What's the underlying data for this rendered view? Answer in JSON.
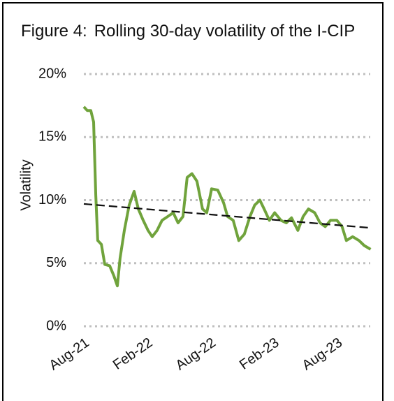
{
  "chart_data": {
    "type": "line",
    "figure_label": "Figure 4:",
    "title": "Rolling 30-day volatility of the I-CIP",
    "y_label": "Volatility",
    "xlim": [
      0,
      27.3
    ],
    "xticks": [
      {
        "value": 0,
        "label": "Aug-21"
      },
      {
        "value": 6,
        "label": "Feb-22"
      },
      {
        "value": 12,
        "label": "Aug-22"
      },
      {
        "value": 18,
        "label": "Feb-23"
      },
      {
        "value": 24,
        "label": "Aug-23"
      }
    ],
    "ylim": [
      0,
      20
    ],
    "yticks": [
      {
        "value": 0,
        "label": "0%"
      },
      {
        "value": 5,
        "label": "5%"
      },
      {
        "value": 10,
        "label": "10%"
      },
      {
        "value": 15,
        "label": "15%"
      },
      {
        "value": 20,
        "label": "20%"
      }
    ],
    "grid": true,
    "series": [
      {
        "color": "#70a33c",
        "style": "solid",
        "x": [
          0,
          0.33,
          0.66,
          0.93,
          1.13,
          1.32,
          1.66,
          1.99,
          2.45,
          2.85,
          3.18,
          3.44,
          3.84,
          4.3,
          4.77,
          5.17,
          5.63,
          6.09,
          6.49,
          6.95,
          7.42,
          7.95,
          8.48,
          8.94,
          9.4,
          9.8,
          10.26,
          10.73,
          11.26,
          11.66,
          12.12,
          12.7,
          13.25,
          13.64,
          14.17,
          14.7,
          15.23,
          15.76,
          16.2,
          16.7,
          17.1,
          17.6,
          18.1,
          18.7,
          19.2,
          19.7,
          20.3,
          20.8,
          21.3,
          21.9,
          22.4,
          22.9,
          23.4,
          24.0,
          24.5,
          24.9,
          25.5,
          26.1,
          26.6,
          27.2
        ],
        "values": [
          17.4,
          17.1,
          17.1,
          16.2,
          10.4,
          6.8,
          6.5,
          4.9,
          4.8,
          4.0,
          3.2,
          5.4,
          7.6,
          9.6,
          10.7,
          9.3,
          8.4,
          7.6,
          7.1,
          7.6,
          8.4,
          8.7,
          9.0,
          8.2,
          8.7,
          11.8,
          12.1,
          11.5,
          9.3,
          9.0,
          10.9,
          10.8,
          9.8,
          8.7,
          8.4,
          6.8,
          7.3,
          8.7,
          9.6,
          10.0,
          9.3,
          8.4,
          9.0,
          8.4,
          8.2,
          8.6,
          7.6,
          8.7,
          9.3,
          9.0,
          8.2,
          7.9,
          8.4,
          8.4,
          7.9,
          6.8,
          7.1,
          6.8,
          6.4,
          6.1
        ]
      },
      {
        "color": "#111111",
        "style": "dashed",
        "x": [
          0,
          27.2
        ],
        "values": [
          9.7,
          7.8
        ]
      }
    ]
  }
}
